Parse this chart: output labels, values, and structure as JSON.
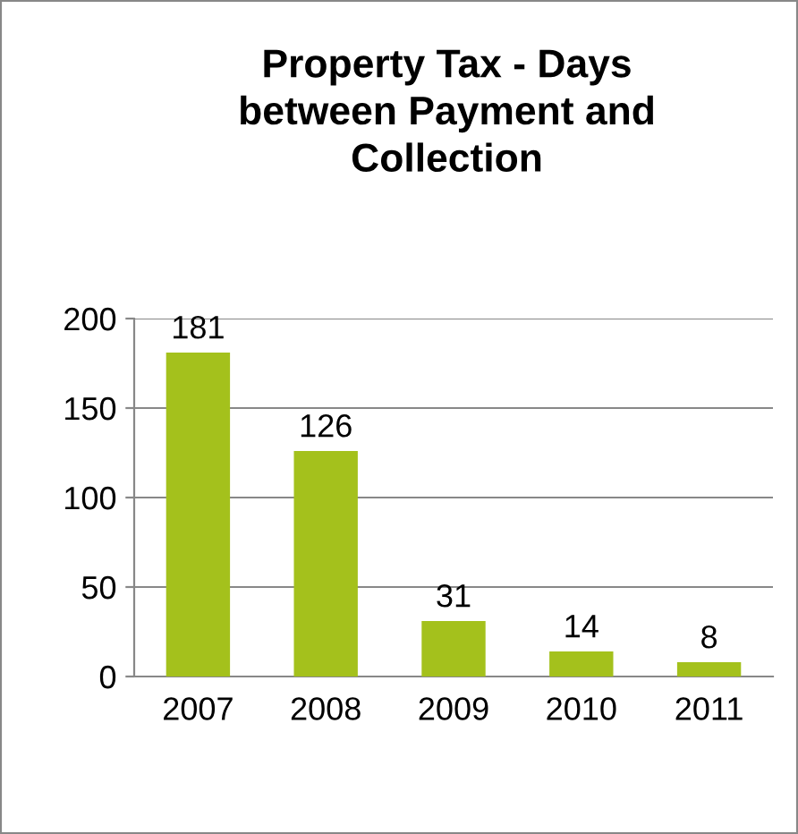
{
  "chart_data": {
    "type": "bar",
    "title": "Property Tax - Days\nbetween Payment and\nCollection",
    "categories": [
      "2007",
      "2008",
      "2009",
      "2010",
      "2011"
    ],
    "values": [
      181,
      126,
      31,
      14,
      8
    ],
    "color": "#a4c11c",
    "ylim": [
      0,
      200
    ],
    "yticks": [
      0,
      50,
      100,
      150,
      200
    ],
    "grid": "y",
    "data_labels": true
  }
}
